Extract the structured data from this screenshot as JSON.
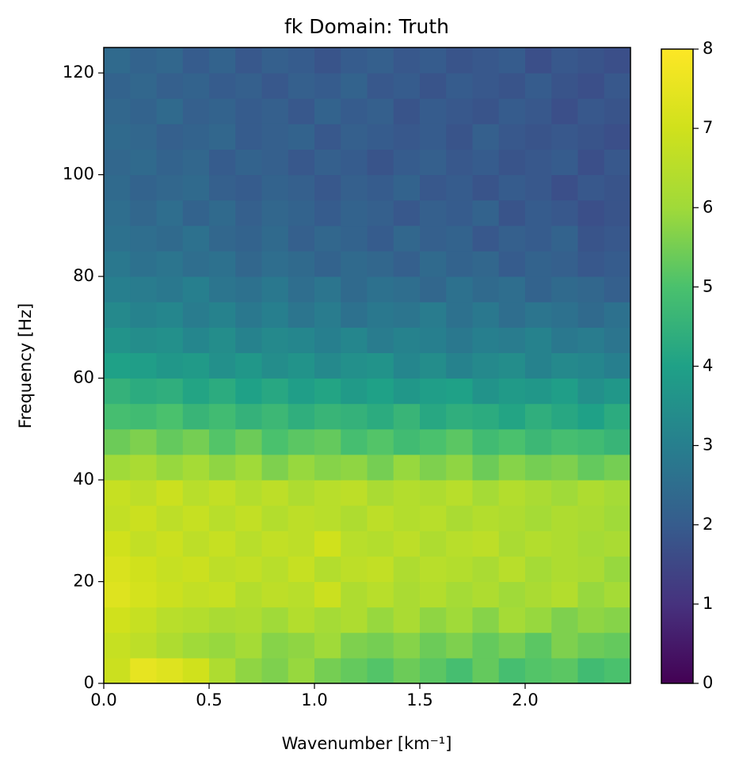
{
  "chart_data": {
    "type": "heatmap",
    "title": "fk Domain: Truth",
    "xlabel": "Wavenumber [km⁻¹]",
    "ylabel": "Frequency [Hz]",
    "colormap": "viridis",
    "xlim": [
      0,
      2.5
    ],
    "ylim": [
      0,
      125
    ],
    "clim": [
      0,
      8
    ],
    "xticks": [
      {
        "value": 0,
        "label": "0.0"
      },
      0.5,
      {
        "value": 1,
        "label": "1.0"
      },
      1.5,
      {
        "value": 2,
        "label": "2.0"
      }
    ],
    "yticks": [
      0,
      20,
      40,
      60,
      80,
      100,
      120
    ],
    "cticks": [
      0,
      1,
      2,
      3,
      4,
      5,
      6,
      7,
      8
    ],
    "values": [
      [
        6.9,
        7.5,
        7.3,
        7.0,
        6.3,
        5.8,
        5.6,
        5.9,
        5.5,
        5.3,
        5.1,
        5.4,
        5.2,
        4.9,
        5.3,
        4.9,
        5.1,
        5.2,
        4.8,
        5.0
      ],
      [
        6.8,
        6.6,
        6.3,
        6.0,
        5.9,
        6.1,
        5.7,
        5.8,
        6.0,
        5.6,
        5.5,
        5.7,
        5.4,
        5.6,
        5.3,
        5.5,
        5.2,
        5.6,
        5.4,
        5.3
      ],
      [
        7.0,
        6.8,
        6.5,
        6.4,
        6.2,
        6.3,
        6.0,
        6.4,
        6.1,
        6.3,
        5.9,
        6.2,
        5.8,
        6.0,
        5.7,
        6.1,
        5.9,
        5.6,
        5.8,
        5.7
      ],
      [
        7.3,
        7.1,
        6.9,
        6.7,
        6.8,
        6.4,
        6.6,
        6.5,
        6.9,
        6.3,
        6.5,
        6.2,
        6.4,
        6.1,
        6.3,
        6.0,
        6.2,
        6.4,
        5.9,
        6.1
      ],
      [
        7.2,
        7.0,
        6.8,
        6.9,
        6.6,
        6.7,
        6.5,
        6.8,
        6.4,
        6.6,
        6.7,
        6.3,
        6.5,
        6.4,
        6.2,
        6.5,
        6.1,
        6.3,
        6.2,
        5.9
      ],
      [
        7.0,
        6.7,
        6.9,
        6.6,
        6.8,
        6.5,
        6.7,
        6.6,
        7.0,
        6.5,
        6.4,
        6.6,
        6.3,
        6.5,
        6.6,
        6.2,
        6.4,
        6.3,
        6.1,
        6.2
      ],
      [
        6.7,
        6.9,
        6.6,
        6.8,
        6.5,
        6.7,
        6.4,
        6.6,
        6.5,
        6.3,
        6.6,
        6.4,
        6.5,
        6.2,
        6.4,
        6.3,
        6.1,
        6.3,
        6.2,
        6.0
      ],
      [
        6.8,
        6.6,
        6.9,
        6.5,
        6.7,
        6.4,
        6.6,
        6.3,
        6.5,
        6.6,
        6.2,
        6.4,
        6.3,
        6.5,
        6.1,
        6.4,
        6.2,
        6.0,
        6.3,
        6.1
      ],
      [
        6.0,
        6.2,
        5.9,
        6.1,
        5.8,
        6.0,
        5.6,
        5.9,
        5.7,
        5.8,
        5.5,
        5.9,
        5.6,
        5.8,
        5.4,
        5.7,
        5.5,
        5.6,
        5.3,
        5.5
      ],
      [
        5.4,
        5.6,
        5.3,
        5.5,
        5.1,
        5.4,
        5.0,
        5.2,
        5.3,
        4.9,
        5.1,
        4.8,
        5.0,
        5.2,
        4.8,
        5.0,
        4.7,
        4.9,
        4.8,
        4.6
      ],
      [
        4.9,
        4.8,
        5.0,
        4.6,
        4.8,
        4.5,
        4.7,
        4.4,
        4.6,
        4.5,
        4.3,
        4.6,
        4.2,
        4.4,
        4.3,
        4.1,
        4.4,
        4.2,
        4.0,
        4.3
      ],
      [
        4.5,
        4.3,
        4.4,
        4.1,
        4.3,
        4.0,
        4.2,
        3.9,
        4.1,
        3.8,
        4.0,
        3.7,
        3.9,
        4.0,
        3.6,
        3.8,
        3.7,
        3.9,
        3.5,
        3.7
      ],
      [
        4.0,
        3.9,
        3.7,
        3.8,
        3.5,
        3.7,
        3.4,
        3.6,
        3.3,
        3.5,
        3.6,
        3.2,
        3.4,
        3.1,
        3.3,
        3.4,
        3.1,
        3.3,
        3.2,
        3.0
      ],
      [
        3.6,
        3.4,
        3.5,
        3.2,
        3.4,
        3.1,
        3.3,
        3.2,
        3.0,
        3.2,
        2.9,
        3.1,
        3.0,
        2.8,
        3.0,
        2.9,
        3.1,
        2.8,
        2.9,
        2.7
      ],
      [
        3.3,
        3.1,
        3.2,
        2.9,
        3.1,
        2.8,
        3.0,
        2.7,
        2.9,
        2.6,
        2.8,
        2.7,
        2.9,
        2.6,
        2.8,
        2.5,
        2.7,
        2.6,
        2.4,
        2.6
      ],
      [
        3.0,
        2.9,
        2.8,
        3.0,
        2.7,
        2.6,
        2.8,
        2.5,
        2.7,
        2.4,
        2.6,
        2.5,
        2.3,
        2.6,
        2.4,
        2.5,
        2.2,
        2.4,
        2.3,
        2.1
      ],
      [
        2.8,
        2.6,
        2.7,
        2.5,
        2.6,
        2.3,
        2.5,
        2.4,
        2.2,
        2.4,
        2.3,
        2.1,
        2.4,
        2.2,
        2.3,
        2.0,
        2.2,
        2.1,
        1.9,
        2.0
      ],
      [
        2.6,
        2.5,
        2.4,
        2.6,
        2.3,
        2.2,
        2.4,
        2.1,
        2.3,
        2.2,
        2.0,
        2.3,
        2.1,
        2.2,
        1.9,
        2.1,
        2.0,
        2.2,
        1.8,
        1.9
      ],
      [
        2.5,
        2.3,
        2.5,
        2.2,
        2.4,
        2.1,
        2.3,
        2.2,
        2.0,
        2.2,
        2.1,
        1.9,
        2.1,
        2.0,
        2.2,
        1.8,
        2.0,
        1.9,
        1.7,
        1.8
      ],
      [
        2.4,
        2.2,
        2.3,
        2.4,
        2.1,
        2.0,
        2.2,
        2.1,
        1.9,
        2.1,
        2.0,
        2.2,
        1.9,
        2.0,
        1.8,
        2.0,
        1.9,
        1.7,
        1.9,
        1.8
      ],
      [
        2.3,
        2.4,
        2.2,
        2.3,
        2.0,
        2.2,
        2.1,
        1.9,
        2.1,
        2.0,
        1.8,
        2.0,
        2.1,
        1.9,
        2.0,
        1.8,
        1.9,
        2.0,
        1.7,
        1.9
      ],
      [
        2.4,
        2.3,
        2.1,
        2.2,
        2.3,
        2.0,
        2.1,
        2.2,
        1.9,
        2.1,
        2.0,
        1.9,
        2.0,
        1.8,
        2.1,
        1.9,
        1.8,
        1.9,
        1.8,
        1.7
      ],
      [
        2.3,
        2.2,
        2.4,
        2.1,
        2.2,
        2.0,
        2.1,
        1.9,
        2.2,
        2.0,
        2.1,
        1.8,
        2.0,
        1.9,
        1.8,
        2.0,
        1.9,
        1.7,
        1.9,
        1.8
      ],
      [
        2.2,
        2.3,
        2.1,
        2.2,
        2.0,
        2.1,
        1.9,
        2.1,
        2.0,
        2.2,
        1.9,
        2.0,
        1.8,
        2.0,
        1.9,
        1.8,
        2.0,
        1.8,
        1.7,
        1.9
      ],
      [
        2.4,
        2.2,
        2.3,
        2.0,
        2.2,
        1.9,
        2.1,
        2.0,
        1.8,
        2.0,
        2.1,
        1.9,
        2.0,
        1.8,
        1.9,
        2.0,
        1.7,
        1.9,
        1.8,
        1.7
      ]
    ]
  }
}
